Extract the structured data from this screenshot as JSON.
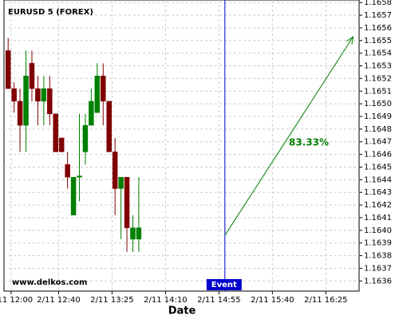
{
  "chart_data": {
    "type": "candlestick",
    "title": "EURUSD 5 (FOREX)",
    "x_label": "Date",
    "watermark": "www.delkos.com",
    "x": [
      "2/11 11:55",
      "2/11 12:00",
      "2/11 12:05",
      "2/11 12:10",
      "2/11 12:15",
      "2/11 12:20",
      "2/11 12:25",
      "2/11 12:30",
      "2/11 12:35",
      "2/11 12:40",
      "2/11 12:45",
      "2/11 12:50",
      "2/11 12:55",
      "2/11 13:00",
      "2/11 13:05",
      "2/11 13:10",
      "2/11 13:15",
      "2/11 13:20",
      "2/11 13:25",
      "2/11 13:30",
      "2/11 13:35",
      "2/11 13:40",
      "2/11 13:45"
    ],
    "open": [
      1.16542,
      1.16512,
      1.16502,
      1.16483,
      1.16532,
      1.16512,
      1.16502,
      1.16512,
      1.16492,
      1.16473,
      1.16452,
      1.16412,
      1.16442,
      1.16462,
      1.16483,
      1.16493,
      1.16522,
      1.16502,
      1.16462,
      1.16433,
      1.16442,
      1.16393,
      1.16393
    ],
    "high": [
      1.16552,
      1.16517,
      1.16512,
      1.16542,
      1.16542,
      1.16522,
      1.16522,
      1.16522,
      1.16492,
      1.16473,
      1.16462,
      1.16442,
      1.16492,
      1.16492,
      1.16512,
      1.16532,
      1.16532,
      1.16502,
      1.16473,
      1.16442,
      1.16442,
      1.16412,
      1.16442
    ],
    "low": [
      1.16512,
      1.16493,
      1.16462,
      1.16462,
      1.16502,
      1.16483,
      1.16483,
      1.16483,
      1.16462,
      1.16462,
      1.16433,
      1.16412,
      1.16423,
      1.16452,
      1.16483,
      1.16493,
      1.16483,
      1.16462,
      1.16412,
      1.16393,
      1.16383,
      1.16383,
      1.16383
    ],
    "close": [
      1.16512,
      1.16502,
      1.16483,
      1.16522,
      1.16512,
      1.16502,
      1.16512,
      1.16492,
      1.16462,
      1.16462,
      1.16442,
      1.16442,
      1.16443,
      1.16483,
      1.16502,
      1.16522,
      1.16502,
      1.16462,
      1.16433,
      1.16442,
      1.16402,
      1.16402,
      1.16402
    ],
    "up_color": "#008000",
    "down_color": "#800000",
    "event": {
      "x": "2/11 15:00",
      "label": "Event",
      "color": "#0000cc"
    },
    "arrow": {
      "x": [
        "2/11 15:00",
        "2/11 16:48"
      ],
      "y": [
        1.16396,
        1.16553
      ],
      "label": "83.33%",
      "color": "#008000"
    },
    "xlim": [
      "2/11 11:54",
      "2/11 16:53"
    ],
    "xticks": [
      "2/11 12:00",
      "2/11 12:40",
      "2/11 13:25",
      "2/11 14:10",
      "2/11 14:55",
      "2/11 15:40",
      "2/11 16:25"
    ],
    "ylim": [
      1.16352,
      1.16582
    ],
    "yticks": [
      {
        "value": 1.1636,
        "label": "1.1636"
      },
      {
        "value": 1.1637,
        "label": "1.1637"
      },
      {
        "value": 1.1638,
        "label": "1.1638"
      },
      {
        "value": 1.1639,
        "label": "1.1639"
      },
      {
        "value": 1.164,
        "label": "1.1640"
      },
      {
        "value": 1.1641,
        "label": "1.1641"
      },
      {
        "value": 1.1642,
        "label": "1.1642"
      },
      {
        "value": 1.1643,
        "label": "1.1643"
      },
      {
        "value": 1.1644,
        "label": "1.1644"
      },
      {
        "value": 1.1645,
        "label": "1.1645"
      },
      {
        "value": 1.1646,
        "label": "1.1646"
      },
      {
        "value": 1.1647,
        "label": "1.1647"
      },
      {
        "value": 1.1648,
        "label": "1.1648"
      },
      {
        "value": 1.1649,
        "label": "1.1649"
      },
      {
        "value": 1.165,
        "label": "1.1650"
      },
      {
        "value": 1.1651,
        "label": "1.1651"
      },
      {
        "value": 1.1652,
        "label": "1.1652"
      },
      {
        "value": 1.1653,
        "label": "1.1653"
      },
      {
        "value": 1.1654,
        "label": "1.1654"
      },
      {
        "value": 1.1655,
        "label": "1.1655"
      },
      {
        "value": 1.1656,
        "label": "1.1656"
      },
      {
        "value": 1.1657,
        "label": "1.1657"
      },
      {
        "value": 1.1658,
        "label": "1.1658"
      }
    ],
    "grid": true
  }
}
